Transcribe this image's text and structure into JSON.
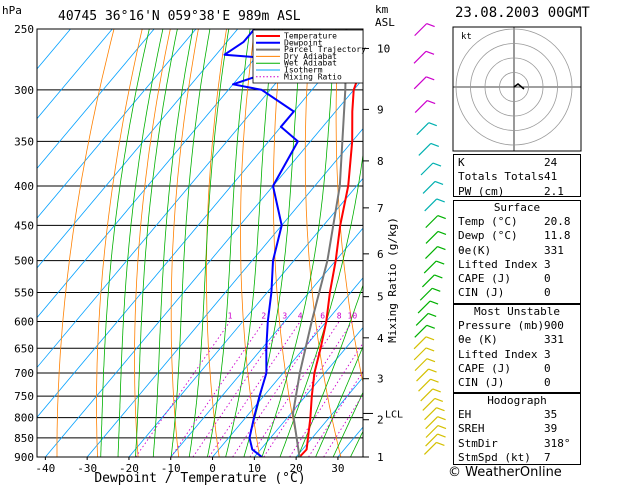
{
  "header": {
    "station": "40745  36°16'N  059°38'E  989m  ASL",
    "timestamp": "23.08.2003  00GMT",
    "pressure_unit": "hPa",
    "height_unit_top": "km",
    "height_unit_bottom": "ASL"
  },
  "legend": [
    {
      "label": "Temperature",
      "color": "#ff0000"
    },
    {
      "label": "Dewpoint",
      "color": "#0000ff"
    },
    {
      "label": "Parcel Trajectory",
      "color": "#777777"
    },
    {
      "label": "Dry Adiabat",
      "color": "#ff8000"
    },
    {
      "label": "Wet Adiabat",
      "color": "#00b000"
    },
    {
      "label": "Isotherm",
      "color": "#00a0ff"
    },
    {
      "label": "Mixing Ratio",
      "color": "#cc00cc"
    }
  ],
  "chart_data": {
    "type": "skew-t",
    "xlabel": "Dewpoint / Temperature (°C)",
    "ylabel": "hPa",
    "y2label": "Mixing Ratio (g/kg)",
    "pressure_ticks": [
      250,
      300,
      350,
      400,
      450,
      500,
      550,
      600,
      650,
      700,
      750,
      800,
      850,
      900
    ],
    "temp_ticks": [
      -40,
      -30,
      -20,
      -10,
      0,
      10,
      20,
      30
    ],
    "plim": [
      250,
      900
    ],
    "tlim_bottom": [
      -42,
      36
    ],
    "km_ticks": [
      {
        "label": "10",
        "p": 265
      },
      {
        "label": "9",
        "p": 318
      },
      {
        "label": "8",
        "p": 371
      },
      {
        "label": "7",
        "p": 427
      },
      {
        "label": "6",
        "p": 490
      },
      {
        "label": "5",
        "p": 557
      },
      {
        "label": "4",
        "p": 630
      },
      {
        "label": "3",
        "p": 712
      },
      {
        "label": "2",
        "p": 805
      },
      {
        "label": "1",
        "p": 900
      }
    ],
    "lcl": {
      "label": "LCL",
      "p": 790
    },
    "mixing_ratio_labels": [
      "1",
      "2",
      "3",
      "4",
      "6",
      "8",
      "10",
      "15",
      "20",
      "25"
    ],
    "mixing_ratio_values": [
      1,
      2,
      3,
      4,
      6,
      8,
      10,
      15,
      20,
      25
    ],
    "series": [
      {
        "name": "Temperature",
        "color": "#ff0000",
        "p": [
          900,
          880,
          850,
          800,
          750,
          700,
          650,
          600,
          550,
          500,
          450,
          400,
          350,
          320,
          300,
          285,
          270,
          255,
          250
        ],
        "t": [
          20.8,
          21,
          19,
          15.5,
          11.5,
          7.5,
          4,
          0,
          -5,
          -10,
          -16,
          -22,
          -30,
          -36,
          -40,
          -42,
          -45,
          -49,
          -50
        ]
      },
      {
        "name": "Dewpoint",
        "color": "#0000ff",
        "p": [
          900,
          880,
          850,
          800,
          750,
          700,
          650,
          600,
          550,
          500,
          450,
          400,
          350,
          335,
          320,
          300,
          295,
          275,
          270,
          260,
          250
        ],
        "t": [
          11.8,
          8,
          5,
          2,
          -1,
          -4,
          -9,
          -14,
          -19,
          -25,
          -30,
          -40,
          -43,
          -50,
          -50,
          -62,
          -70,
          -58,
          -78,
          -76,
          -76
        ]
      },
      {
        "name": "Parcel Trajectory",
        "color": "#777777",
        "p": [
          900,
          790,
          700,
          600,
          500,
          400,
          300,
          250
        ],
        "t": [
          20.8,
          10.5,
          4,
          -3.5,
          -12,
          -24,
          -42,
          -54
        ]
      }
    ]
  },
  "hodograph": {
    "label": "kt",
    "rings": [
      10,
      20,
      30,
      40
    ]
  },
  "indices": {
    "k": {
      "label": "K",
      "value": "24"
    },
    "tt": {
      "label": "Totals Totals",
      "value": "41"
    },
    "pw": {
      "label": "PW (cm)",
      "value": "2.1"
    }
  },
  "surface": {
    "title": "Surface",
    "rows": [
      {
        "label": "Temp (°C)",
        "value": "20.8"
      },
      {
        "label": "Dewp (°C)",
        "value": "11.8"
      },
      {
        "label": "θe(K)",
        "value": "331"
      },
      {
        "label": "Lifted Index",
        "value": "3"
      },
      {
        "label": "CAPE (J)",
        "value": "0"
      },
      {
        "label": "CIN (J)",
        "value": "0"
      }
    ]
  },
  "unstable": {
    "title": "Most Unstable",
    "rows": [
      {
        "label": "Pressure (mb)",
        "value": "900"
      },
      {
        "label": "θe (K)",
        "value": "331"
      },
      {
        "label": "Lifted Index",
        "value": "3"
      },
      {
        "label": "CAPE (J)",
        "value": "0"
      },
      {
        "label": "CIN (J)",
        "value": "0"
      }
    ]
  },
  "hodo_stats": {
    "title": "Hodograph",
    "rows": [
      {
        "label": "EH",
        "value": "35"
      },
      {
        "label": "SREH",
        "value": "39"
      },
      {
        "label": "StmDir",
        "value": "318°"
      },
      {
        "label": "StmSpd (kt)",
        "value": "7"
      }
    ]
  },
  "footer": "© WeatherOnline"
}
